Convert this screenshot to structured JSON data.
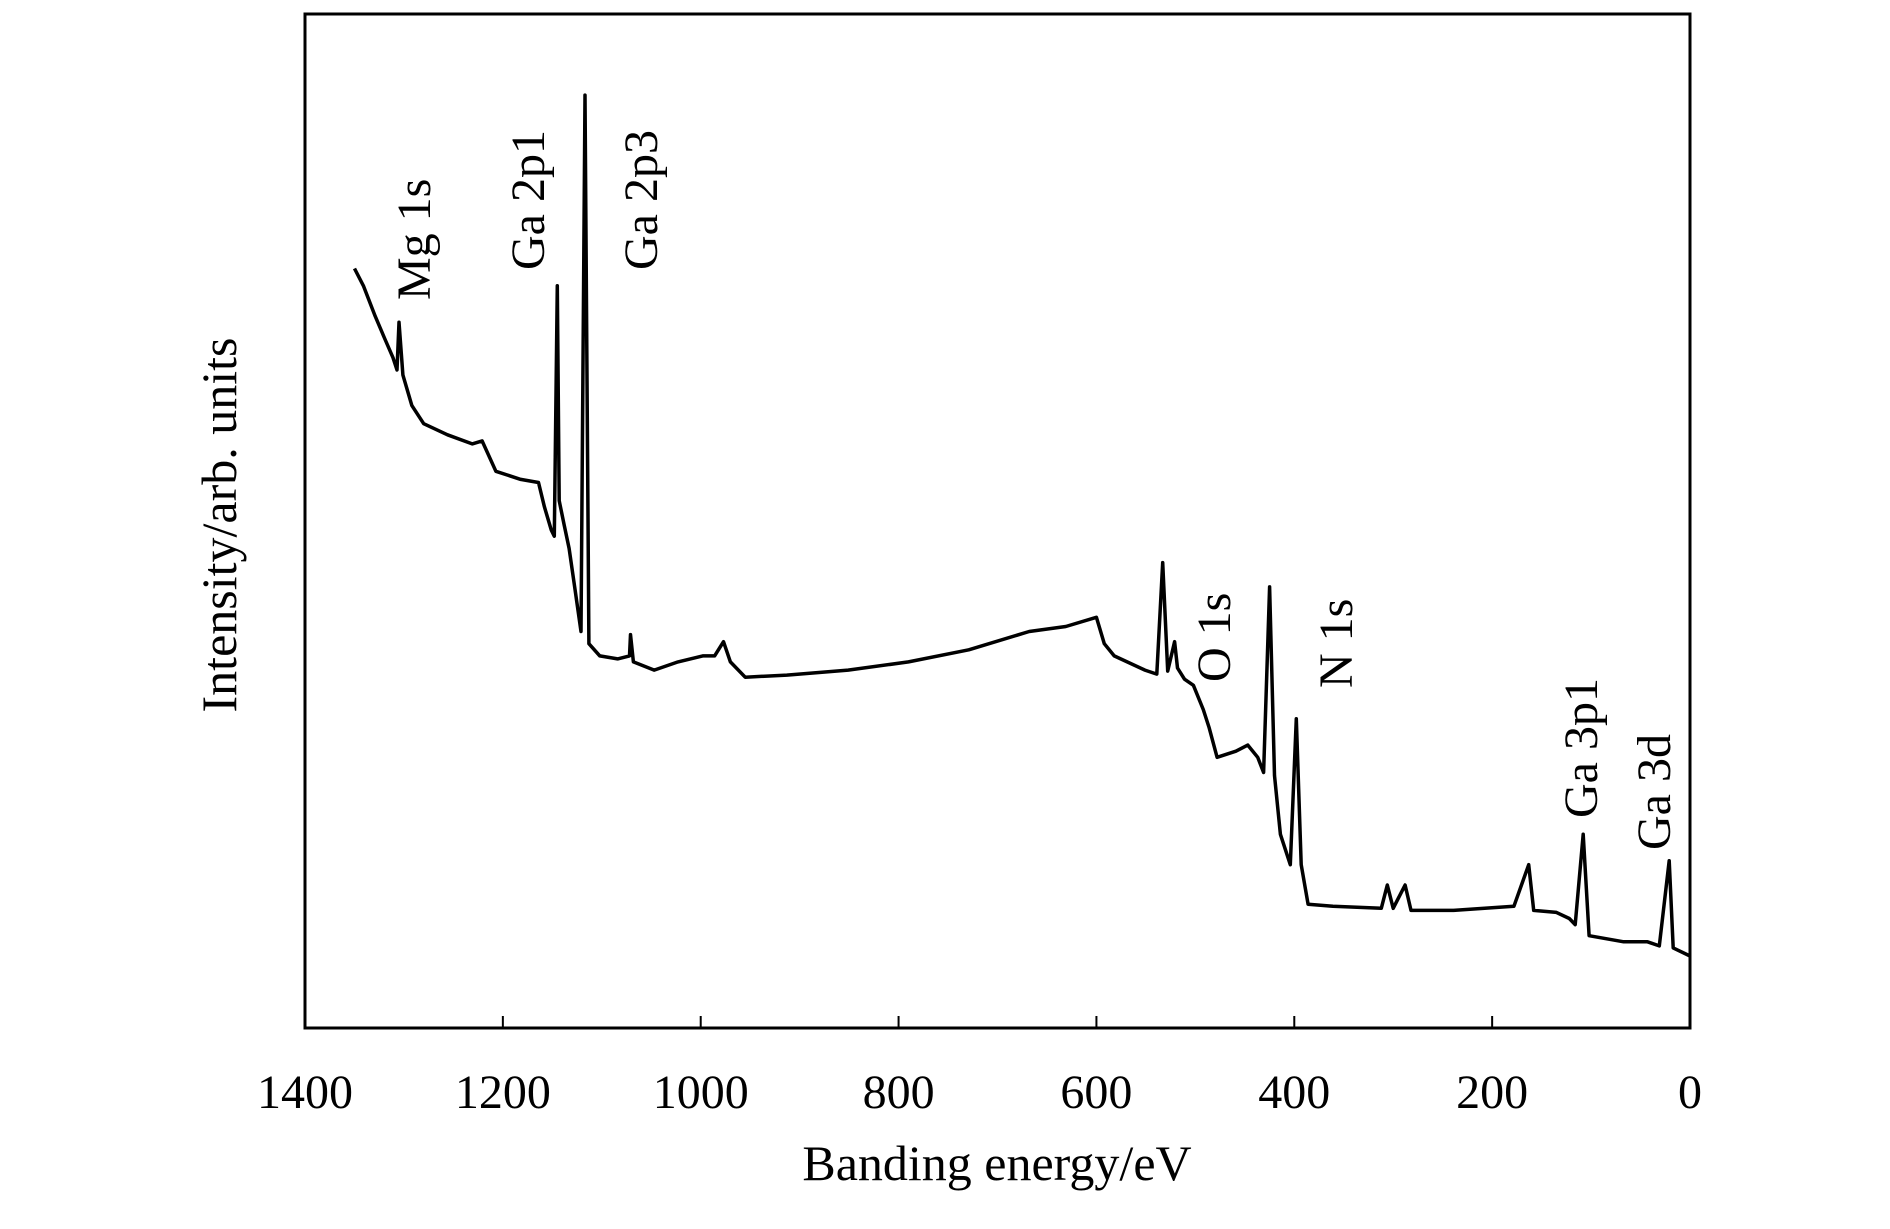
{
  "chart_data": {
    "type": "line",
    "xlabel": "Banding energy/eV",
    "ylabel": "Intensity/arb. units",
    "color": "#000000",
    "xlim": [
      1400,
      0
    ],
    "xticks": [
      1400,
      1200,
      1000,
      800,
      600,
      400,
      200,
      0
    ],
    "ylim": [
      0,
      100
    ],
    "x": [
      1350,
      1341,
      1329,
      1319,
      1311,
      1307,
      1305,
      1301,
      1292,
      1280,
      1256,
      1231,
      1221,
      1207,
      1182,
      1164,
      1158,
      1151,
      1148,
      1145,
      1143,
      1138,
      1133,
      1127,
      1121,
      1117,
      1113,
      1102,
      1084,
      1072,
      1071,
      1068,
      1047,
      1023,
      998,
      986,
      977,
      970,
      955,
      913,
      851,
      790,
      729,
      668,
      631,
      600,
      592,
      582,
      551,
      539,
      533,
      528,
      521,
      518,
      511,
      502,
      492,
      486,
      478,
      459,
      447,
      437,
      431,
      425,
      420,
      414,
      404,
      398,
      393,
      386,
      361,
      312,
      306,
      300,
      288,
      282,
      239,
      178,
      163,
      158,
      135,
      122,
      116,
      108,
      102,
      67,
      43,
      31,
      21,
      17,
      0
    ],
    "values": [
      74.9,
      73.2,
      70.2,
      67.9,
      66.1,
      64.9,
      69.6,
      64.4,
      61.4,
      59.6,
      58.5,
      57.6,
      57.9,
      54.9,
      54.1,
      53.8,
      51.4,
      49.1,
      48.5,
      73.2,
      52.0,
      49.6,
      47.3,
      43.2,
      39.1,
      92.0,
      37.9,
      36.7,
      36.4,
      36.7,
      38.8,
      36.1,
      35.3,
      36.1,
      36.7,
      36.7,
      38.1,
      36.1,
      34.6,
      34.8,
      35.3,
      36.1,
      37.3,
      39.1,
      39.6,
      40.5,
      37.9,
      36.7,
      35.3,
      34.9,
      45.9,
      35.2,
      38.1,
      35.5,
      34.4,
      33.8,
      31.4,
      29.6,
      26.7,
      27.3,
      27.9,
      26.7,
      25.2,
      43.5,
      24.9,
      19.1,
      16.1,
      30.5,
      16.1,
      12.2,
      12.0,
      11.8,
      14.1,
      11.8,
      14.1,
      11.6,
      11.6,
      12.0,
      16.1,
      11.6,
      11.4,
      10.8,
      10.2,
      19.1,
      9.1,
      8.5,
      8.5,
      8.1,
      16.5,
      7.9,
      7.1
    ],
    "annotations": [
      "Mg 1s",
      "Ga 2p1",
      "Ga 2p3",
      "O 1s",
      "N 1s",
      "Ga 3p1",
      "Ga 3d"
    ]
  }
}
